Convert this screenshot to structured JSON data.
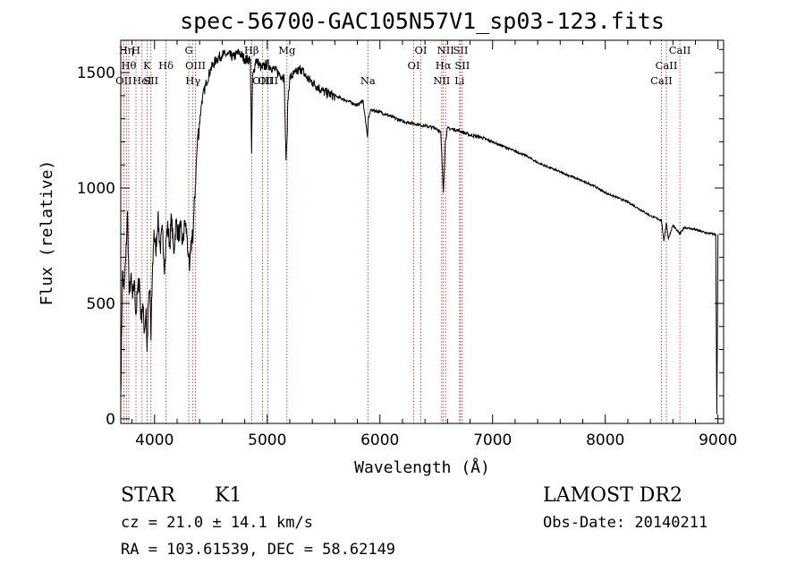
{
  "chart_data": {
    "type": "line",
    "title": "spec-56700-GAC105N57V1_sp03-123.fits",
    "xlabel": "Wavelength (Å)",
    "ylabel": "Flux (relative)",
    "xlim": [
      3700,
      9050
    ],
    "ylim": [
      -20,
      1640
    ],
    "x_ticks": [
      4000,
      5000,
      6000,
      7000,
      8000,
      9000
    ],
    "y_ticks": [
      0,
      500,
      1000,
      1500
    ],
    "x_tick_labels": [
      "4000",
      "5000",
      "6000",
      "7000",
      "8000",
      "9000"
    ],
    "y_tick_labels": [
      "0",
      "500",
      "1000",
      "1500"
    ],
    "grid": false,
    "series": [
      {
        "x": [
          3700,
          3715,
          3730,
          3745,
          3760,
          3775,
          3790,
          3805,
          3820,
          3835,
          3850,
          3865,
          3880,
          3895,
          3910,
          3925,
          3933,
          3945,
          3960,
          3968,
          3980,
          3995,
          4010,
          4030,
          4050,
          4070,
          4090,
          4102,
          4115,
          4135,
          4150,
          4170,
          4190,
          4210,
          4230,
          4250,
          4270,
          4290,
          4300,
          4310,
          4320,
          4335,
          4340,
          4350,
          4380,
          4420,
          4460,
          4500,
          4550,
          4600,
          4650,
          4700,
          4750,
          4800,
          4850,
          4861,
          4870,
          4900,
          4950,
          5000,
          5050,
          5100,
          5150,
          5167,
          5175,
          5183,
          5200,
          5250,
          5300,
          5350,
          5400,
          5500,
          5600,
          5700,
          5800,
          5850,
          5890,
          5896,
          5920,
          6000,
          6100,
          6200,
          6300,
          6400,
          6500,
          6540,
          6563,
          6580,
          6600,
          6700,
          6800,
          6900,
          7000,
          7100,
          7200,
          7300,
          7400,
          7500,
          7600,
          7700,
          7800,
          7900,
          8000,
          8100,
          8200,
          8300,
          8400,
          8498,
          8520,
          8542,
          8560,
          8600,
          8662,
          8700,
          8800,
          8900,
          8980,
          8990,
          9000
        ],
        "y": [
          100,
          640,
          560,
          700,
          900,
          540,
          620,
          520,
          600,
          450,
          560,
          610,
          430,
          500,
          380,
          480,
          290,
          500,
          560,
          340,
          620,
          820,
          720,
          880,
          740,
          820,
          650,
          780,
          840,
          760,
          880,
          720,
          860,
          800,
          830,
          760,
          860,
          790,
          700,
          640,
          720,
          820,
          760,
          900,
          1200,
          1380,
          1460,
          1520,
          1560,
          1580,
          1580,
          1570,
          1590,
          1560,
          1560,
          1150,
          1480,
          1560,
          1520,
          1540,
          1520,
          1500,
          1480,
          1120,
          1200,
          1380,
          1480,
          1500,
          1520,
          1480,
          1460,
          1420,
          1400,
          1380,
          1360,
          1380,
          1220,
          1300,
          1340,
          1330,
          1310,
          1290,
          1280,
          1270,
          1260,
          1240,
          980,
          1200,
          1260,
          1250,
          1230,
          1220,
          1200,
          1180,
          1160,
          1140,
          1110,
          1090,
          1070,
          1050,
          1030,
          1010,
          980,
          960,
          940,
          910,
          880,
          860,
          770,
          850,
          780,
          840,
          800,
          830,
          820,
          805,
          800,
          20,
          800
        ]
      }
    ],
    "line_markers": [
      {
        "x": 3727,
        "label": "OII",
        "row": 2
      },
      {
        "x": 3750,
        "label": "Hη",
        "row": 0
      },
      {
        "x": 3771,
        "label": "Hθ",
        "row": 1
      },
      {
        "x": 3835,
        "label": "H",
        "row": 0
      },
      {
        "x": 3889,
        "label": "HeI",
        "row": 2
      },
      {
        "x": 3933,
        "label": "K",
        "row": 1
      },
      {
        "x": 3968,
        "label": "SII",
        "row": 2
      },
      {
        "x": 4102,
        "label": "Hδ",
        "row": 1
      },
      {
        "x": 4304,
        "label": "G",
        "row": 0
      },
      {
        "x": 4363,
        "label": "OIII",
        "row": 1
      },
      {
        "x": 4341,
        "label": "Hγ",
        "row": 2
      },
      {
        "x": 4861,
        "label": "Hβ",
        "row": 0
      },
      {
        "x": 4959,
        "label": "OIII",
        "row": 2
      },
      {
        "x": 5007,
        "label": "OIII",
        "row": 2
      },
      {
        "x": 5175,
        "label": "Mg",
        "row": 0
      },
      {
        "x": 5893,
        "label": "Na",
        "row": 2
      },
      {
        "x": 6300,
        "label": "OI",
        "row": 1
      },
      {
        "x": 6363,
        "label": "OI",
        "row": 0
      },
      {
        "x": 6548,
        "label": "NII",
        "row": 2
      },
      {
        "x": 6563,
        "label": "Hα",
        "row": 1
      },
      {
        "x": 6583,
        "label": "NII",
        "row": 0
      },
      {
        "x": 6707,
        "label": "Li",
        "row": 2
      },
      {
        "x": 6716,
        "label": "SII",
        "row": 0
      },
      {
        "x": 6731,
        "label": "SII",
        "row": 1
      },
      {
        "x": 8498,
        "label": "CaII",
        "row": 2
      },
      {
        "x": 8542,
        "label": "CaII",
        "row": 1
      },
      {
        "x": 8662,
        "label": "CaII",
        "row": 0
      }
    ]
  },
  "footer": {
    "object_class": "STAR",
    "subclass": "K1",
    "survey": "LAMOST DR2",
    "cz": "cz = 21.0 ± 14.1 km/s",
    "obs_date": "Obs-Date: 20140211",
    "coords": "RA = 103.61539, DEC =  58.62149"
  }
}
